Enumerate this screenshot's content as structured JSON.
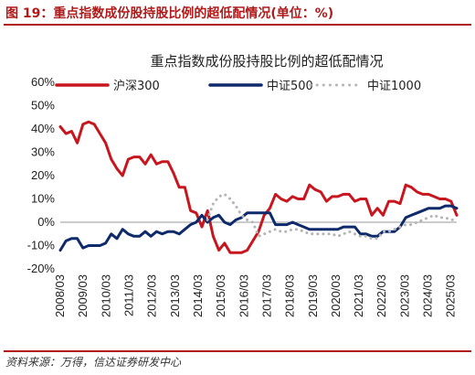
{
  "figure_title": "图 19：重点指数成份股持股比例的超低配情况(单位：%)",
  "source": "资料来源：万得，信达证券研发中心",
  "colors": {
    "accent": "#b11a1a",
    "s1": "#c8161e",
    "s2": "#0e2a6b",
    "s3": "#b5b5b5"
  },
  "chart_data": {
    "type": "line",
    "title": "重点指数成份股持股比例的超低配情况",
    "ylim": [
      -20,
      60
    ],
    "yticks": [
      "60%",
      "50%",
      "40%",
      "30%",
      "20%",
      "10%",
      "0%",
      "-10%",
      "-20%"
    ],
    "xticks": [
      "2008/03",
      "2009/03",
      "2010/03",
      "2011/03",
      "2012/03",
      "2013/03",
      "2014/03",
      "2015/03",
      "2016/03",
      "2017/03",
      "2018/03",
      "2019/03",
      "2020/03",
      "2021/03",
      "2022/03",
      "2023/03",
      "2024/03",
      "2025/03"
    ],
    "x_start": "2008/03",
    "x_end": "2025/06",
    "legend_position": "top",
    "series": [
      {
        "name": "沪深300",
        "color": "#c8161e",
        "style": "solid",
        "values": [
          41,
          38,
          39,
          34,
          42,
          43,
          42,
          38,
          34,
          27,
          23,
          20,
          27,
          28,
          28,
          25,
          29,
          25,
          26,
          26,
          21,
          15,
          15,
          5,
          4,
          -2,
          5,
          -6,
          -12,
          -9,
          -13,
          -13,
          -13,
          -12,
          -8,
          -4,
          3,
          6,
          12,
          10,
          9,
          11,
          10,
          10,
          16,
          14,
          13,
          9,
          11,
          11,
          12,
          12,
          9,
          10,
          10,
          3,
          6,
          3,
          9,
          9,
          8,
          16,
          15,
          13,
          12,
          12,
          11,
          10,
          10,
          9,
          3
        ]
      },
      {
        "name": "中证500",
        "color": "#0e2a6b",
        "style": "solid",
        "values": [
          -12,
          -8,
          -7,
          -7,
          -11,
          -10,
          -10,
          -10,
          -9,
          -5,
          -7,
          -3,
          -5,
          -6,
          -6,
          -4,
          -6,
          -4,
          -5,
          -4,
          -4,
          -5,
          -3,
          -1,
          0,
          3,
          0,
          2,
          3,
          0,
          -1,
          1,
          2,
          4,
          4,
          4,
          4,
          4,
          -1,
          -1,
          -1,
          0,
          -1,
          -2,
          -3,
          -3,
          -3,
          -3,
          -3,
          -3,
          -2,
          -2,
          -2,
          -5,
          -5,
          -6,
          -6,
          -4,
          -4,
          -4,
          -2,
          2,
          3,
          4,
          5,
          6,
          6,
          6,
          7,
          7,
          6
        ]
      },
      {
        "name": "中证1000",
        "color": "#b5b5b5",
        "style": "dotted",
        "values": [
          null,
          null,
          null,
          null,
          null,
          null,
          null,
          null,
          null,
          null,
          null,
          null,
          null,
          null,
          null,
          null,
          null,
          null,
          null,
          null,
          null,
          null,
          null,
          null,
          null,
          null,
          1,
          8,
          11,
          12,
          10,
          7,
          3,
          1,
          0,
          -6,
          -5,
          -4,
          -3,
          -4,
          -4,
          -3,
          -3,
          -4,
          -5,
          -5,
          -5,
          -5,
          -5,
          -6,
          -5,
          -4,
          -5,
          -6,
          -6,
          -7,
          -7,
          -4,
          -4,
          -3,
          -2,
          -1,
          -1,
          0,
          1,
          2,
          3,
          2,
          2,
          1,
          1
        ]
      }
    ]
  }
}
